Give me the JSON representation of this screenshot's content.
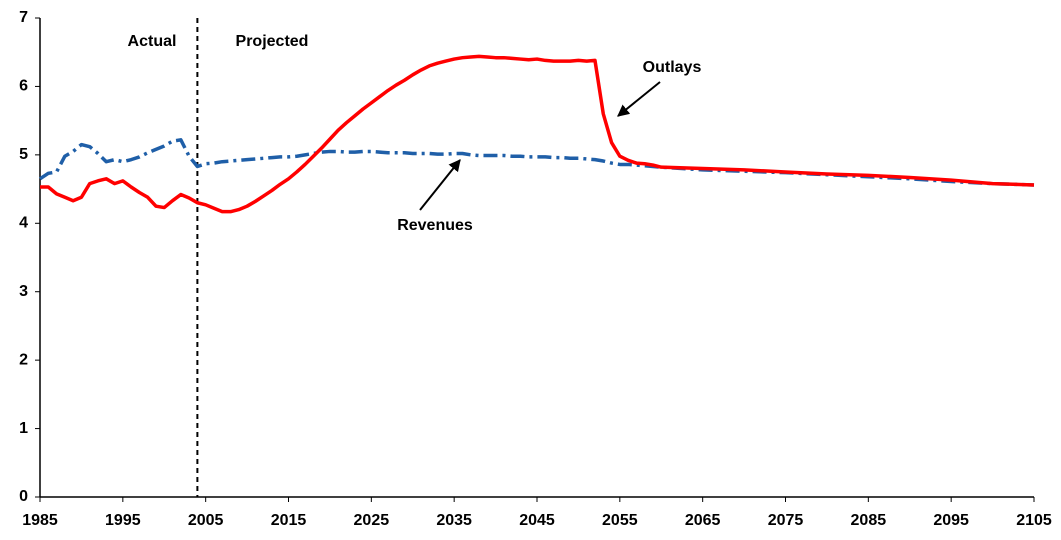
{
  "chart_data": {
    "type": "line",
    "annotations": [
      "Actual",
      "Projected",
      "Outlays",
      "Revenues"
    ],
    "divider_x": 2004,
    "x": [
      1985,
      1986,
      1987,
      1988,
      1989,
      1990,
      1991,
      1992,
      1993,
      1994,
      1995,
      1996,
      1997,
      1998,
      1999,
      2000,
      2001,
      2002,
      2003,
      2004,
      2005,
      2006,
      2007,
      2008,
      2009,
      2010,
      2011,
      2012,
      2013,
      2014,
      2015,
      2016,
      2017,
      2018,
      2019,
      2020,
      2021,
      2022,
      2023,
      2024,
      2025,
      2026,
      2027,
      2028,
      2029,
      2030,
      2031,
      2032,
      2033,
      2034,
      2035,
      2036,
      2037,
      2038,
      2039,
      2040,
      2041,
      2042,
      2043,
      2044,
      2045,
      2046,
      2047,
      2048,
      2049,
      2050,
      2051,
      2052,
      2053,
      2054,
      2055,
      2056,
      2057,
      2058,
      2059,
      2060,
      2065,
      2070,
      2075,
      2080,
      2085,
      2090,
      2095,
      2100,
      2105
    ],
    "series": [
      {
        "name": "Outlays",
        "color": "#ff0000",
        "style": "solid",
        "values": [
          4.53,
          4.53,
          4.43,
          4.38,
          4.33,
          4.38,
          4.58,
          4.62,
          4.65,
          4.58,
          4.62,
          4.53,
          4.45,
          4.38,
          4.25,
          4.23,
          4.33,
          4.42,
          4.37,
          4.3,
          4.27,
          4.22,
          4.17,
          4.17,
          4.2,
          4.25,
          4.32,
          4.4,
          4.48,
          4.57,
          4.65,
          4.75,
          4.86,
          4.98,
          5.1,
          5.23,
          5.36,
          5.47,
          5.57,
          5.67,
          5.76,
          5.85,
          5.94,
          6.02,
          6.09,
          6.17,
          6.24,
          6.3,
          6.34,
          6.37,
          6.4,
          6.42,
          6.43,
          6.44,
          6.43,
          6.42,
          6.42,
          6.41,
          6.4,
          6.39,
          6.4,
          6.38,
          6.37,
          6.37,
          6.37,
          6.38,
          6.37,
          6.38,
          5.6,
          5.18,
          4.98,
          4.92,
          4.88,
          4.87,
          4.85,
          4.82,
          4.8,
          4.78,
          4.75,
          4.72,
          4.7,
          4.67,
          4.63,
          4.58,
          4.56
        ]
      },
      {
        "name": "Revenues",
        "color": "#1f5fa8",
        "style": "dashed",
        "values": [
          4.65,
          4.73,
          4.75,
          4.98,
          5.05,
          5.15,
          5.12,
          5.02,
          4.9,
          4.93,
          4.9,
          4.93,
          4.97,
          5.03,
          5.08,
          5.13,
          5.2,
          5.22,
          4.98,
          4.83,
          4.87,
          4.88,
          4.9,
          4.91,
          4.92,
          4.93,
          4.94,
          4.95,
          4.96,
          4.97,
          4.97,
          4.98,
          5.0,
          5.02,
          5.04,
          5.05,
          5.05,
          5.04,
          5.04,
          5.05,
          5.05,
          5.04,
          5.03,
          5.03,
          5.03,
          5.02,
          5.02,
          5.02,
          5.01,
          5.01,
          5.02,
          5.02,
          5.0,
          4.99,
          4.99,
          4.99,
          4.99,
          4.98,
          4.98,
          4.97,
          4.97,
          4.97,
          4.96,
          4.96,
          4.95,
          4.95,
          4.94,
          4.93,
          4.91,
          4.88,
          4.86,
          4.86,
          4.85,
          4.84,
          4.83,
          4.82,
          4.78,
          4.76,
          4.74,
          4.71,
          4.68,
          4.65,
          4.61,
          4.58,
          4.56
        ]
      }
    ],
    "xlim": [
      1985,
      2105
    ],
    "xticks": [
      1985,
      1995,
      2005,
      2015,
      2025,
      2035,
      2045,
      2055,
      2065,
      2075,
      2085,
      2095,
      2105
    ],
    "ylim": [
      0,
      7
    ],
    "yticks": [
      0,
      1,
      2,
      3,
      4,
      5,
      6,
      7
    ],
    "grid": false
  }
}
